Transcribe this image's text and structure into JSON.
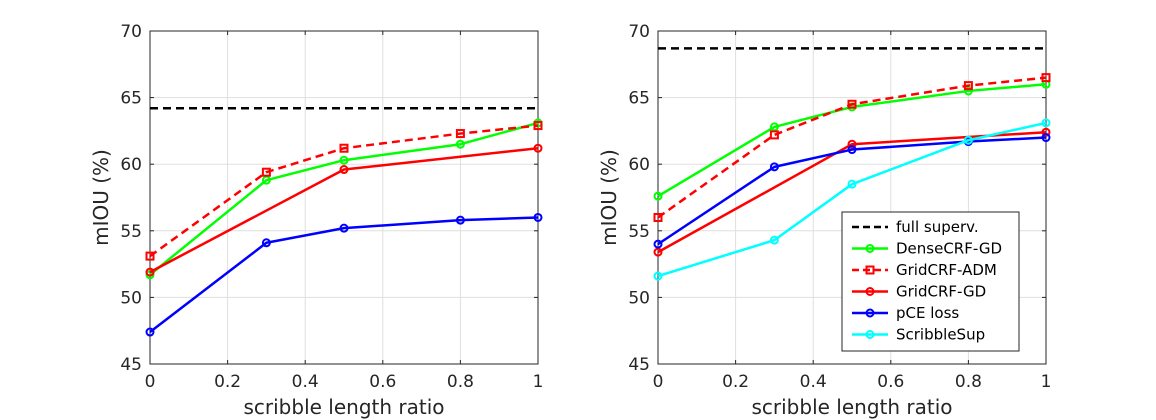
{
  "chart_data": [
    {
      "type": "line",
      "xlabel": "scribble length ratio",
      "ylabel": "mIOU (%)",
      "xlim": [
        0,
        1
      ],
      "ylim": [
        45,
        70
      ],
      "xticks": [
        "0",
        "0.2",
        "0.4",
        "0.6",
        "0.8",
        "1"
      ],
      "yticks": [
        "45",
        "50",
        "55",
        "60",
        "65",
        "70"
      ],
      "grid": true,
      "legend": "none",
      "series": [
        {
          "key": "full",
          "style": "dashed",
          "color": "#000000",
          "marker": "none",
          "x": [
            0,
            1
          ],
          "values": [
            64.2,
            64.2
          ]
        },
        {
          "key": "densecrf_gd",
          "style": "solid",
          "color": "#00ff00",
          "marker": "circle",
          "x": [
            0,
            0.3,
            0.5,
            0.8,
            1
          ],
          "values": [
            51.7,
            58.8,
            60.3,
            61.5,
            63.1
          ]
        },
        {
          "key": "gridcrf_adm",
          "style": "dashed",
          "color": "#ff0000",
          "marker": "square",
          "x": [
            0,
            0.3,
            0.5,
            0.8,
            1
          ],
          "values": [
            53.1,
            59.4,
            61.2,
            62.3,
            62.9
          ]
        },
        {
          "key": "gridcrf_gd",
          "style": "solid",
          "color": "#ff0000",
          "marker": "circle",
          "x": [
            0,
            0.5,
            1
          ],
          "values": [
            51.9,
            59.6,
            61.2
          ]
        },
        {
          "key": "pce",
          "style": "solid",
          "color": "#0000ff",
          "marker": "circle",
          "x": [
            0,
            0.3,
            0.5,
            0.8,
            1
          ],
          "values": [
            47.4,
            54.1,
            55.2,
            55.8,
            56.0
          ]
        }
      ]
    },
    {
      "type": "line",
      "xlabel": "scribble length ratio",
      "ylabel": "mIOU (%)",
      "xlim": [
        0,
        1
      ],
      "ylim": [
        45,
        70
      ],
      "xticks": [
        "0",
        "0.2",
        "0.4",
        "0.6",
        "0.8",
        "1"
      ],
      "yticks": [
        "45",
        "50",
        "55",
        "60",
        "65",
        "70"
      ],
      "grid": true,
      "legend": "bottom-right",
      "series": [
        {
          "key": "full",
          "name": "full superv.",
          "style": "dashed",
          "color": "#000000",
          "marker": "none",
          "x": [
            0,
            1
          ],
          "values": [
            68.7,
            68.7
          ]
        },
        {
          "key": "densecrf_gd",
          "name": "DenseCRF-GD",
          "style": "solid",
          "color": "#00ff00",
          "marker": "circle",
          "x": [
            0,
            0.3,
            0.5,
            0.8,
            1
          ],
          "values": [
            57.6,
            62.8,
            64.3,
            65.5,
            66.0
          ]
        },
        {
          "key": "gridcrf_adm",
          "name": "GridCRF-ADM",
          "style": "dashed",
          "color": "#ff0000",
          "marker": "square",
          "x": [
            0,
            0.3,
            0.5,
            0.8,
            1
          ],
          "values": [
            56.0,
            62.2,
            64.5,
            65.9,
            66.5
          ]
        },
        {
          "key": "gridcrf_gd",
          "name": "GridCRF-GD",
          "style": "solid",
          "color": "#ff0000",
          "marker": "circle",
          "x": [
            0,
            0.5,
            1
          ],
          "values": [
            53.4,
            61.5,
            62.4
          ]
        },
        {
          "key": "pce",
          "name": "pCE loss",
          "style": "solid",
          "color": "#0000ff",
          "marker": "circle",
          "x": [
            0,
            0.3,
            0.5,
            0.8,
            1
          ],
          "values": [
            54.0,
            59.8,
            61.1,
            61.7,
            62.0
          ]
        },
        {
          "key": "scribblesup",
          "name": "ScribbleSup",
          "style": "solid",
          "color": "#00ffff",
          "marker": "circle",
          "x": [
            0,
            0.3,
            0.5,
            0.8,
            1
          ],
          "values": [
            51.6,
            54.3,
            58.5,
            61.8,
            63.1
          ]
        }
      ]
    }
  ]
}
